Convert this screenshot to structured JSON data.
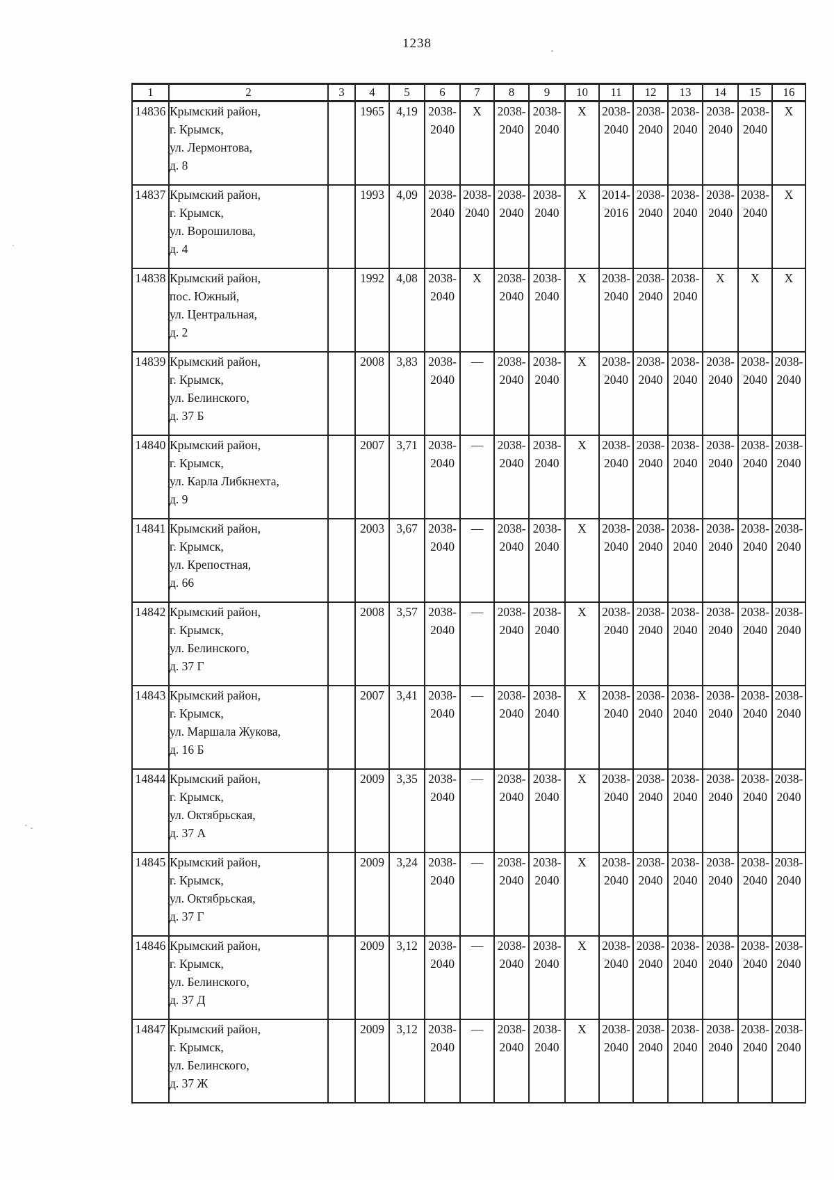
{
  "page_number": "1238",
  "table": {
    "headers": [
      "1",
      "2",
      "3",
      "4",
      "5",
      "6",
      "7",
      "8",
      "9",
      "10",
      "11",
      "12",
      "13",
      "14",
      "15",
      "16"
    ],
    "rows": [
      {
        "id": "14836",
        "address": [
          "Крымский район,",
          "г. Крымск,",
          "ул. Лермонтова,",
          "д. 8"
        ],
        "values": [
          "",
          "1965",
          "4,19",
          "2038-\n2040",
          "X",
          "2038-\n2040",
          "2038-\n2040",
          "X",
          "2038-\n2040",
          "2038-\n2040",
          "2038-\n2040",
          "2038-\n2040",
          "2038-\n2040",
          "X"
        ]
      },
      {
        "id": "14837",
        "address": [
          "Крымский район,",
          "г. Крымск,",
          "ул. Ворошилова,",
          "д. 4"
        ],
        "values": [
          "",
          "1993",
          "4,09",
          "2038-\n2040",
          "2038-\n2040",
          "2038-\n2040",
          "2038-\n2040",
          "X",
          "2014-\n2016",
          "2038-\n2040",
          "2038-\n2040",
          "2038-\n2040",
          "2038-\n2040",
          "X"
        ]
      },
      {
        "id": "14838",
        "address": [
          "Крымский район,",
          "пос. Южный,",
          "ул. Центральная,",
          "д. 2"
        ],
        "values": [
          "",
          "1992",
          "4,08",
          "2038-\n2040",
          "X",
          "2038-\n2040",
          "2038-\n2040",
          "X",
          "2038-\n2040",
          "2038-\n2040",
          "2038-\n2040",
          "X",
          "X",
          "X"
        ]
      },
      {
        "id": "14839",
        "address": [
          "Крымский район,",
          "г. Крымск,",
          "ул. Белинского,",
          "д. 37 Б"
        ],
        "values": [
          "",
          "2008",
          "3,83",
          "2038-\n2040",
          "—",
          "2038-\n2040",
          "2038-\n2040",
          "X",
          "2038-\n2040",
          "2038-\n2040",
          "2038-\n2040",
          "2038-\n2040",
          "2038-\n2040",
          "2038-\n2040"
        ]
      },
      {
        "id": "14840",
        "address": [
          "Крымский район,",
          "г. Крымск,",
          "ул. Карла Либкнехта,",
          "д. 9"
        ],
        "values": [
          "",
          "2007",
          "3,71",
          "2038-\n2040",
          "—",
          "2038-\n2040",
          "2038-\n2040",
          "X",
          "2038-\n2040",
          "2038-\n2040",
          "2038-\n2040",
          "2038-\n2040",
          "2038-\n2040",
          "2038-\n2040"
        ]
      },
      {
        "id": "14841",
        "address": [
          "Крымский район,",
          "г. Крымск,",
          "ул. Крепостная,",
          "д. 66"
        ],
        "values": [
          "",
          "2003",
          "3,67",
          "2038-\n2040",
          "—",
          "2038-\n2040",
          "2038-\n2040",
          "X",
          "2038-\n2040",
          "2038-\n2040",
          "2038-\n2040",
          "2038-\n2040",
          "2038-\n2040",
          "2038-\n2040"
        ]
      },
      {
        "id": "14842",
        "address": [
          "Крымский район,",
          "г. Крымск,",
          "ул. Белинского,",
          "д. 37 Г"
        ],
        "values": [
          "",
          "2008",
          "3,57",
          "2038-\n2040",
          "—",
          "2038-\n2040",
          "2038-\n2040",
          "X",
          "2038-\n2040",
          "2038-\n2040",
          "2038-\n2040",
          "2038-\n2040",
          "2038-\n2040",
          "2038-\n2040"
        ]
      },
      {
        "id": "14843",
        "address": [
          "Крымский район,",
          "г. Крымск,",
          "ул. Маршала Жукова,",
          "д. 16 Б"
        ],
        "values": [
          "",
          "2007",
          "3,41",
          "2038-\n2040",
          "—",
          "2038-\n2040",
          "2038-\n2040",
          "X",
          "2038-\n2040",
          "2038-\n2040",
          "2038-\n2040",
          "2038-\n2040",
          "2038-\n2040",
          "2038-\n2040"
        ]
      },
      {
        "id": "14844",
        "address": [
          "Крымский район,",
          "г. Крымск,",
          "ул. Октябрьская,",
          "д. 37 А"
        ],
        "values": [
          "",
          "2009",
          "3,35",
          "2038-\n2040",
          "—",
          "2038-\n2040",
          "2038-\n2040",
          "X",
          "2038-\n2040",
          "2038-\n2040",
          "2038-\n2040",
          "2038-\n2040",
          "2038-\n2040",
          "2038-\n2040"
        ]
      },
      {
        "id": "14845",
        "address": [
          "Крымский район,",
          "г. Крымск,",
          "ул. Октябрьская,",
          "д. 37 Г"
        ],
        "values": [
          "",
          "2009",
          "3,24",
          "2038-\n2040",
          "—",
          "2038-\n2040",
          "2038-\n2040",
          "X",
          "2038-\n2040",
          "2038-\n2040",
          "2038-\n2040",
          "2038-\n2040",
          "2038-\n2040",
          "2038-\n2040"
        ]
      },
      {
        "id": "14846",
        "address": [
          "Крымский район,",
          "г. Крымск,",
          "ул. Белинского,",
          "д. 37 Д"
        ],
        "values": [
          "",
          "2009",
          "3,12",
          "2038-\n2040",
          "—",
          "2038-\n2040",
          "2038-\n2040",
          "X",
          "2038-\n2040",
          "2038-\n2040",
          "2038-\n2040",
          "2038-\n2040",
          "2038-\n2040",
          "2038-\n2040"
        ]
      },
      {
        "id": "14847",
        "address": [
          "Крымский район,",
          "г. Крымск,",
          "ул. Белинского,",
          "д. 37 Ж"
        ],
        "values": [
          "",
          "2009",
          "3,12",
          "2038-\n2040",
          "—",
          "2038-\n2040",
          "2038-\n2040",
          "X",
          "2038-\n2040",
          "2038-\n2040",
          "2038-\n2040",
          "2038-\n2040",
          "2038-\n2040",
          "2038-\n2040"
        ]
      }
    ]
  }
}
